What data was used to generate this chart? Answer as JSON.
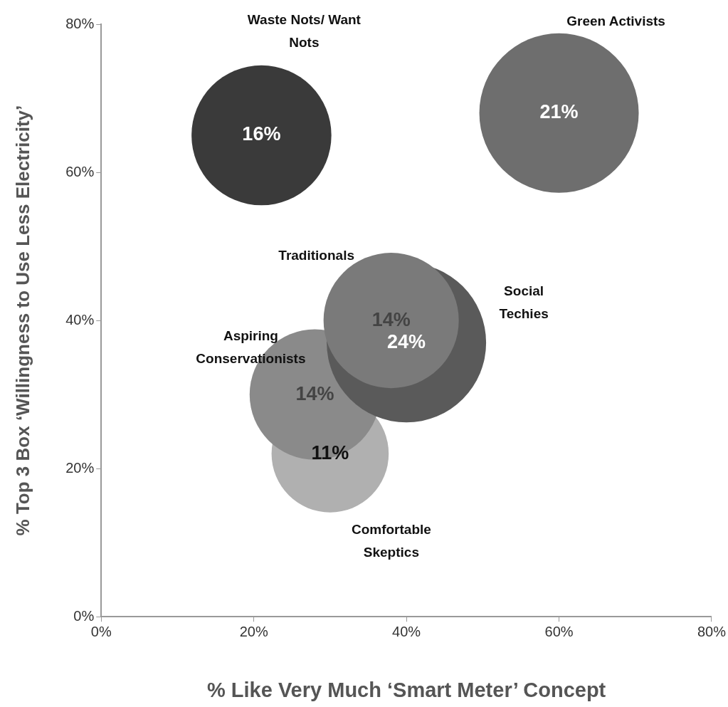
{
  "chart_data": {
    "type": "bubble",
    "xlabel": "% Like Very Much ‘Smart Meter’ Concept",
    "ylabel": "% Top 3 Box ‘Willingness to Use Less Electricity’",
    "xlim": [
      0,
      80
    ],
    "ylim": [
      0,
      80
    ],
    "xticks": [
      {
        "value": 0,
        "label": "0%"
      },
      {
        "value": 20,
        "label": "20%"
      },
      {
        "value": 40,
        "label": "40%"
      },
      {
        "value": 60,
        "label": "60%"
      },
      {
        "value": 80,
        "label": "80%"
      }
    ],
    "yticks": [
      {
        "value": 0,
        "label": "0%"
      },
      {
        "value": 20,
        "label": "20%"
      },
      {
        "value": 40,
        "label": "40%"
      },
      {
        "value": 60,
        "label": "60%"
      },
      {
        "value": 80,
        "label": "80%"
      }
    ],
    "grid": false,
    "legend": false,
    "annotations": [
      {
        "text": "16%",
        "x": 21,
        "y": 65
      },
      {
        "text": "21%",
        "x": 60,
        "y": 68
      },
      {
        "text": "14%",
        "x": 38,
        "y": 40
      },
      {
        "text": "24%",
        "x": 40,
        "y": 37
      },
      {
        "text": "14%",
        "x": 28,
        "y": 30
      },
      {
        "text": "11%",
        "x": 30,
        "y": 22
      }
    ],
    "series": [
      {
        "name": "Waste Nots/ Want Nots",
        "color": "#3a3a3a",
        "x": [
          21
        ],
        "values": [
          65
        ],
        "sizes": [
          0.77
        ]
      },
      {
        "name": "Green Activists",
        "color": "#6e6e6e",
        "x": [
          60
        ],
        "values": [
          68
        ],
        "sizes": [
          1
        ]
      },
      {
        "name": "Traditionals",
        "color": "#7a7a7a",
        "x": [
          38
        ],
        "values": [
          40
        ],
        "sizes": [
          0.72
        ]
      },
      {
        "name": "Social Techies",
        "color": "#5a5a5a",
        "x": [
          40
        ],
        "values": [
          37
        ],
        "sizes": [
          1
        ]
      },
      {
        "name": "Aspiring Conservationists",
        "color": "#8a8a8a",
        "x": [
          28
        ],
        "values": [
          30
        ],
        "sizes": [
          0.67
        ]
      },
      {
        "name": "Comfortable Skeptics",
        "color": "#b0b0b0",
        "x": [
          30
        ],
        "values": [
          22
        ],
        "sizes": [
          0.54
        ]
      }
    ]
  }
}
